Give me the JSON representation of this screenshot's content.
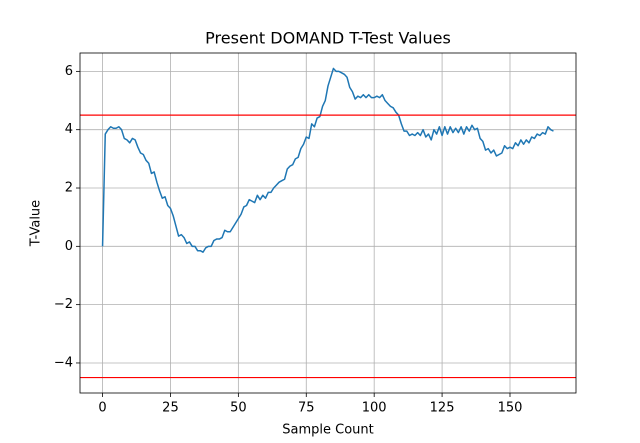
{
  "chart_data": {
    "type": "line",
    "title": "Present DOMAND T-Test Values",
    "x_label": "Sample Count",
    "y_label": "T-Value",
    "x": [
      0,
      1,
      2,
      3,
      4,
      5,
      6,
      7,
      8,
      9,
      10,
      11,
      12,
      13,
      14,
      15,
      16,
      17,
      18,
      19,
      20,
      21,
      22,
      23,
      24,
      25,
      26,
      27,
      28,
      29,
      30,
      31,
      32,
      33,
      34,
      35,
      36,
      37,
      38,
      39,
      40,
      41,
      42,
      43,
      44,
      45,
      46,
      47,
      48,
      49,
      50,
      51,
      52,
      53,
      54,
      55,
      56,
      57,
      58,
      59,
      60,
      61,
      62,
      63,
      64,
      65,
      66,
      67,
      68,
      69,
      70,
      71,
      72,
      73,
      74,
      75,
      76,
      77,
      78,
      79,
      80,
      81,
      82,
      83,
      84,
      85,
      86,
      87,
      88,
      89,
      90,
      91,
      92,
      93,
      94,
      95,
      96,
      97,
      98,
      99,
      100,
      101,
      102,
      103,
      104,
      105,
      106,
      107,
      108,
      109,
      110,
      111,
      112,
      113,
      114,
      115,
      116,
      117,
      118,
      119,
      120,
      121,
      122,
      123,
      124,
      125,
      126,
      127,
      128,
      129,
      130,
      131,
      132,
      133,
      134,
      135,
      136,
      137,
      138,
      139,
      140,
      141,
      142,
      143,
      144,
      145,
      146,
      147,
      148,
      149,
      150,
      151,
      152,
      153,
      154,
      155,
      156,
      157,
      158,
      159,
      160,
      161,
      162,
      163,
      164,
      165,
      166
    ],
    "series": [
      {
        "color": "#1f77b4",
        "values": [
          0,
          3.85,
          4.0,
          4.1,
          4.05,
          4.05,
          4.1,
          4.0,
          3.7,
          3.65,
          3.55,
          3.7,
          3.65,
          3.4,
          3.2,
          3.15,
          2.95,
          2.85,
          2.5,
          2.55,
          2.2,
          1.9,
          1.65,
          1.7,
          1.4,
          1.3,
          1.05,
          0.7,
          0.35,
          0.4,
          0.3,
          0.1,
          0.15,
          0.0,
          0.0,
          -0.15,
          -0.15,
          -0.2,
          -0.05,
          0.0,
          0.0,
          0.2,
          0.25,
          0.25,
          0.3,
          0.55,
          0.5,
          0.5,
          0.65,
          0.8,
          0.95,
          1.1,
          1.35,
          1.4,
          1.6,
          1.55,
          1.5,
          1.75,
          1.6,
          1.75,
          1.65,
          1.85,
          1.85,
          2.0,
          2.1,
          2.2,
          2.25,
          2.3,
          2.65,
          2.75,
          2.8,
          3.0,
          3.05,
          3.35,
          3.5,
          3.75,
          3.7,
          4.2,
          4.1,
          4.4,
          4.45,
          4.8,
          5.0,
          5.5,
          5.8,
          6.1,
          6.0,
          6.0,
          5.95,
          5.9,
          5.8,
          5.45,
          5.3,
          5.05,
          5.15,
          5.1,
          5.2,
          5.1,
          5.2,
          5.1,
          5.1,
          5.15,
          5.1,
          5.2,
          5.0,
          4.9,
          4.8,
          4.75,
          4.6,
          4.5,
          4.2,
          3.95,
          3.95,
          3.8,
          3.85,
          3.8,
          3.9,
          3.8,
          4.0,
          3.75,
          3.85,
          3.65,
          4.0,
          3.85,
          4.1,
          3.8,
          4.1,
          3.85,
          4.1,
          3.9,
          4.05,
          3.9,
          4.1,
          3.85,
          4.1,
          3.95,
          4.15,
          4.0,
          4.05,
          3.7,
          3.6,
          3.3,
          3.35,
          3.2,
          3.3,
          3.1,
          3.15,
          3.2,
          3.45,
          3.35,
          3.4,
          3.35,
          3.55,
          3.45,
          3.65,
          3.5,
          3.65,
          3.55,
          3.75,
          3.7,
          3.85,
          3.8,
          3.9,
          3.85,
          4.1,
          4.0,
          3.95
        ]
      }
    ],
    "hlines": [
      {
        "value": 4.5,
        "color": "#ff0000"
      },
      {
        "value": -4.5,
        "color": "#ff0000"
      }
    ],
    "xlim": [
      -8.3,
      174.3
    ],
    "ylim": [
      -5.03,
      6.63
    ],
    "xticks": [
      0,
      25,
      50,
      75,
      100,
      125,
      150
    ],
    "yticks": [
      {
        "value": -4,
        "label": "−4"
      },
      {
        "value": -2,
        "label": "−2"
      },
      0,
      2,
      4,
      6
    ],
    "grid": true
  }
}
